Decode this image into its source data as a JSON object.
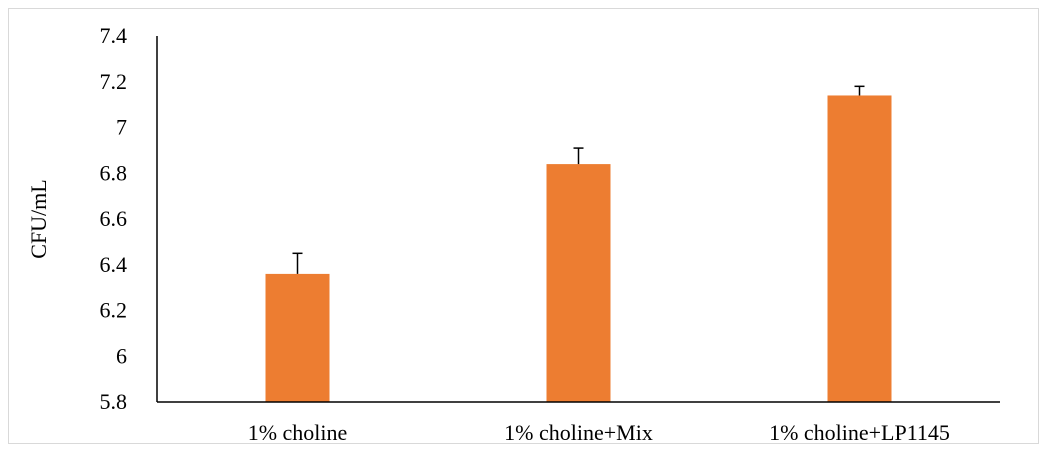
{
  "chart_data": {
    "type": "bar",
    "categories": [
      "1% choline",
      "1% choline+Mix",
      "1% choline+LP1145"
    ],
    "values": [
      6.36,
      6.84,
      7.14
    ],
    "errors": [
      0.09,
      0.07,
      0.04
    ],
    "xlabel": "",
    "ylabel": "CFU/mL",
    "ylim": [
      5.8,
      7.4
    ],
    "yticks": [
      "5.8",
      "6",
      "6.2",
      "6.4",
      "6.6",
      "6.8",
      "7",
      "7.2",
      "7.4"
    ],
    "bar_color": "#ED7D31",
    "grid": false,
    "legend": "none"
  }
}
